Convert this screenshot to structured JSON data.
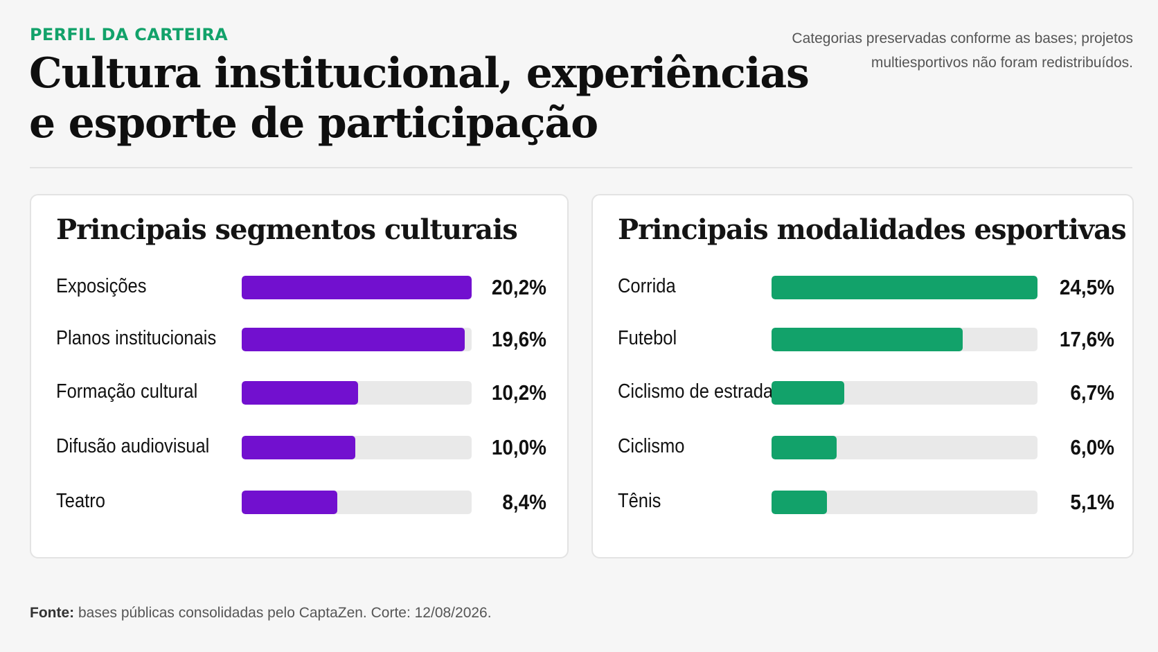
{
  "header": {
    "eyebrow": "PERFIL DA CARTEIRA",
    "title": "Cultura institucional, experiências e esporte de participação",
    "note": "Categorias preservadas conforme as bases; projetos multiesportivos não foram redistribuídos."
  },
  "footer": {
    "source_label": "Fonte:",
    "source_text": "bases públicas consolidadas pelo CaptaZen. Corte: 12/08/2026."
  },
  "colors": {
    "cultural": "#7210cf",
    "sports": "#12a26a",
    "track": "#e9e9e9",
    "accent": "#12a26a"
  },
  "chart_data": [
    {
      "type": "bar",
      "orientation": "horizontal",
      "title": "Principais segmentos culturais",
      "categories": [
        "Exposições",
        "Planos institucionais",
        "Formação cultural",
        "Difusão audiovisual",
        "Teatro"
      ],
      "values": [
        20.2,
        19.6,
        10.2,
        10.0,
        8.4
      ],
      "value_labels": [
        "20,2%",
        "19,6%",
        "10,2%",
        "10,0%",
        "8,4%"
      ],
      "unit": "%",
      "xlim": [
        0,
        20.2
      ],
      "color": "#7210cf"
    },
    {
      "type": "bar",
      "orientation": "horizontal",
      "title": "Principais modalidades esportivas",
      "categories": [
        "Corrida",
        "Futebol",
        "Ciclismo de estrada",
        "Ciclismo",
        "Tênis"
      ],
      "values": [
        24.5,
        17.6,
        6.7,
        6.0,
        5.1
      ],
      "value_labels": [
        "24,5%",
        "17,6%",
        "6,7%",
        "6,0%",
        "5,1%"
      ],
      "unit": "%",
      "xlim": [
        0,
        24.5
      ],
      "color": "#12a26a"
    }
  ]
}
